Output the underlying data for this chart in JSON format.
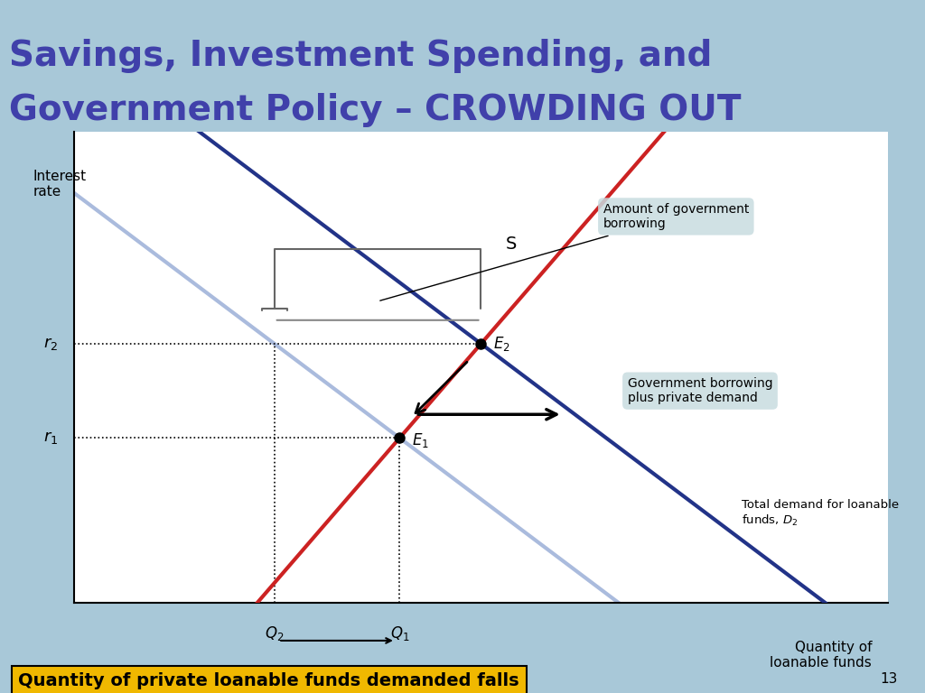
{
  "title_line1": "Savings, Investment Spending, and",
  "title_line2": "Government Policy – CROWDING OUT",
  "title_color": "#4040AA",
  "title_bg_color_top": "#8FC8B8",
  "title_bg_color_bot": "#7AAFB0",
  "slide_bg_color": "#A8C8D8",
  "chart_bg_color": "#FFFFFF",
  "ylabel": "Interest\nrate",
  "xlabel": "Quantity of\nloanable funds",
  "supply_color": "#CC2222",
  "demand1_color": "#AABBDD",
  "demand2_color": "#223388",
  "r1": 3.5,
  "r2": 5.5,
  "q1": 4.0,
  "q2": 2.8,
  "e2_q": 5.0,
  "xlim": [
    0,
    10
  ],
  "ylim": [
    0,
    10
  ],
  "note_bg_color": "#C8DCE0",
  "bottom_note_text": "Quantity of private loanable funds demanded falls",
  "bottom_note_bg": "#F0B800",
  "page_num": "13"
}
